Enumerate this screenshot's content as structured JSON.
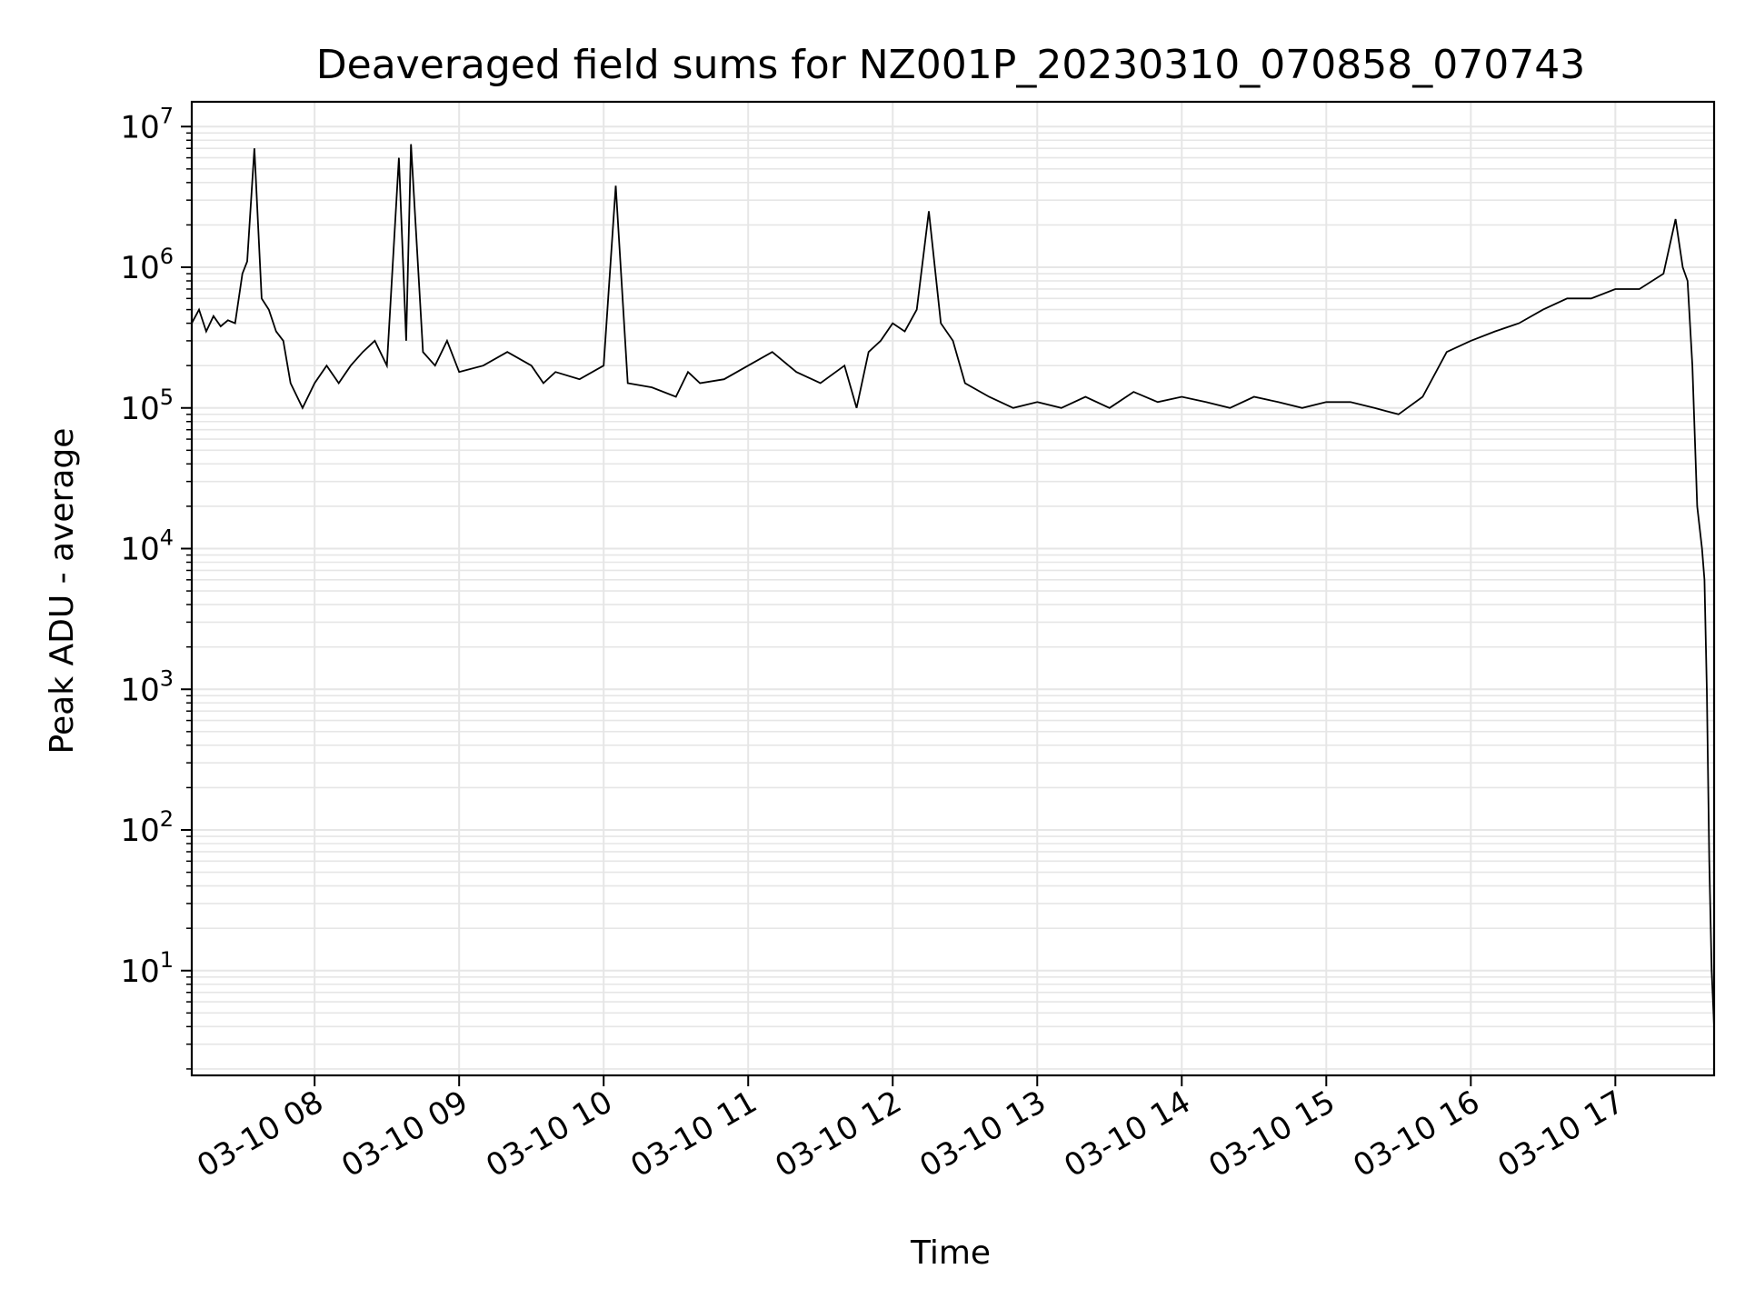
{
  "chart_data": {
    "type": "line",
    "title": "Deaveraged field sums for NZ001P_20230310_070858_070743",
    "xlabel": "Time",
    "ylabel": "Peak ADU - average",
    "yscale": "log",
    "grid": true,
    "line_color": "#000000",
    "grid_color": "#e6e6e6",
    "xlim": [
      "03-10 07:09",
      "03-10 17:41"
    ],
    "ylim": [
      1.8,
      15000000
    ],
    "x_ticks": [
      "03-10 08",
      "03-10 09",
      "03-10 10",
      "03-10 11",
      "03-10 12",
      "03-10 13",
      "03-10 14",
      "03-10 15",
      "03-10 16",
      "03-10 17"
    ],
    "y_ticks": [
      {
        "value": 10,
        "base": "10",
        "exp": "1"
      },
      {
        "value": 100,
        "base": "10",
        "exp": "2"
      },
      {
        "value": 1000,
        "base": "10",
        "exp": "3"
      },
      {
        "value": 10000,
        "base": "10",
        "exp": "4"
      },
      {
        "value": 100000,
        "base": "10",
        "exp": "5"
      },
      {
        "value": 1000000,
        "base": "10",
        "exp": "6"
      },
      {
        "value": 10000000,
        "base": "10",
        "exp": "7"
      }
    ],
    "series": [
      {
        "x": [
          "03-10 07:09",
          "03-10 07:12",
          "03-10 07:15",
          "03-10 07:18",
          "03-10 07:21",
          "03-10 07:24",
          "03-10 07:27",
          "03-10 07:30",
          "03-10 07:32",
          "03-10 07:35",
          "03-10 07:38",
          "03-10 07:41",
          "03-10 07:44",
          "03-10 07:47",
          "03-10 07:50",
          "03-10 07:55",
          "03-10 08:00",
          "03-10 08:05",
          "03-10 08:10",
          "03-10 08:15",
          "03-10 08:20",
          "03-10 08:25",
          "03-10 08:30",
          "03-10 08:35",
          "03-10 08:38",
          "03-10 08:40",
          "03-10 08:45",
          "03-10 08:50",
          "03-10 08:55",
          "03-10 09:00",
          "03-10 09:10",
          "03-10 09:20",
          "03-10 09:30",
          "03-10 09:35",
          "03-10 09:40",
          "03-10 09:50",
          "03-10 10:00",
          "03-10 10:05",
          "03-10 10:10",
          "03-10 10:20",
          "03-10 10:30",
          "03-10 10:35",
          "03-10 10:40",
          "03-10 10:50",
          "03-10 11:00",
          "03-10 11:10",
          "03-10 11:20",
          "03-10 11:30",
          "03-10 11:40",
          "03-10 11:45",
          "03-10 11:50",
          "03-10 11:55",
          "03-10 12:00",
          "03-10 12:05",
          "03-10 12:10",
          "03-10 12:15",
          "03-10 12:20",
          "03-10 12:25",
          "03-10 12:30",
          "03-10 12:40",
          "03-10 12:50",
          "03-10 13:00",
          "03-10 13:10",
          "03-10 13:20",
          "03-10 13:30",
          "03-10 13:40",
          "03-10 13:50",
          "03-10 14:00",
          "03-10 14:10",
          "03-10 14:20",
          "03-10 14:30",
          "03-10 14:40",
          "03-10 14:50",
          "03-10 15:00",
          "03-10 15:10",
          "03-10 15:20",
          "03-10 15:30",
          "03-10 15:40",
          "03-10 15:50",
          "03-10 16:00",
          "03-10 16:10",
          "03-10 16:20",
          "03-10 16:30",
          "03-10 16:40",
          "03-10 16:50",
          "03-10 17:00",
          "03-10 17:10",
          "03-10 17:20",
          "03-10 17:25",
          "03-10 17:28",
          "03-10 17:30",
          "03-10 17:32",
          "03-10 17:34",
          "03-10 17:36",
          "03-10 17:37",
          "03-10 17:38",
          "03-10 17:39",
          "03-10 17:40",
          "03-10 17:41"
        ],
        "y": [
          400000,
          500000,
          350000,
          450000,
          380000,
          420000,
          400000,
          900000,
          1100000,
          7000000,
          600000,
          500000,
          350000,
          300000,
          150000,
          100000,
          150000,
          200000,
          150000,
          200000,
          250000,
          300000,
          200000,
          6000000,
          300000,
          7500000,
          250000,
          200000,
          300000,
          180000,
          200000,
          250000,
          200000,
          150000,
          180000,
          160000,
          200000,
          3800000,
          150000,
          140000,
          120000,
          180000,
          150000,
          160000,
          200000,
          250000,
          180000,
          150000,
          200000,
          100000,
          250000,
          300000,
          400000,
          350000,
          500000,
          2500000,
          400000,
          300000,
          150000,
          120000,
          100000,
          110000,
          100000,
          120000,
          100000,
          130000,
          110000,
          120000,
          110000,
          100000,
          120000,
          110000,
          100000,
          110000,
          110000,
          100000,
          90000,
          120000,
          250000,
          300000,
          350000,
          400000,
          500000,
          600000,
          600000,
          700000,
          700000,
          900000,
          2200000,
          1000000,
          800000,
          200000,
          20000,
          10000,
          6000,
          1000,
          60,
          10,
          4
        ]
      }
    ]
  }
}
